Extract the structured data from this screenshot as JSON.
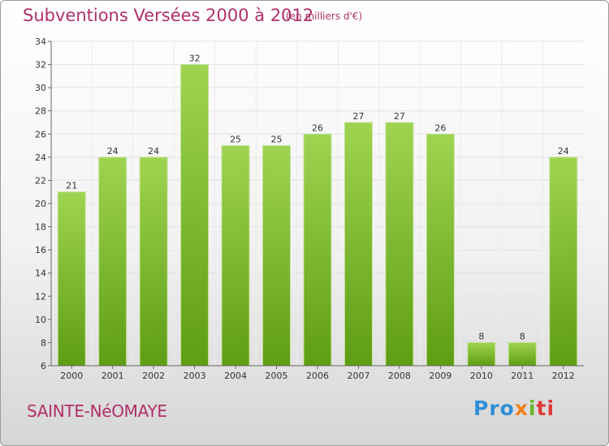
{
  "header": {
    "title": "Subventions Versées 2000 à 2012",
    "subtitle": "(en milliers d'€)"
  },
  "footer": {
    "place": "SAINTE-NéOMAYE",
    "logo": {
      "p1": "Pro",
      "p2": "x",
      "p3": "i",
      "p4": "ti",
      "colors": [
        "#2f8fd6",
        "#f07f1c",
        "#6ab72a",
        "#e03a3a"
      ]
    }
  },
  "chart_data": {
    "type": "bar",
    "title": "Subventions Versées 2000 à 2012",
    "subtitle": "(en milliers d'€)",
    "xlabel": "",
    "ylabel": "",
    "categories": [
      "2000",
      "2001",
      "2002",
      "2003",
      "2004",
      "2005",
      "2006",
      "2007",
      "2008",
      "2009",
      "2010",
      "2011",
      "2012"
    ],
    "values": [
      21,
      24,
      24,
      32,
      25,
      25,
      26,
      27,
      27,
      26,
      8,
      8,
      24
    ],
    "ylim": [
      6,
      34
    ],
    "yticks": [
      6,
      8,
      10,
      12,
      14,
      16,
      18,
      20,
      22,
      24,
      26,
      28,
      30,
      32,
      34
    ],
    "grid": true,
    "bar_color": "#7dbd2f"
  }
}
